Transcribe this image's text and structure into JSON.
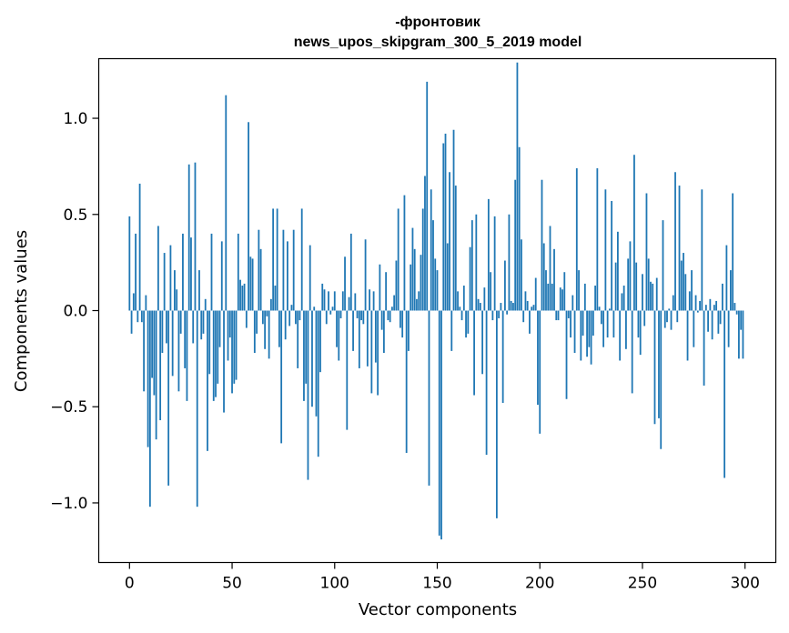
{
  "chart_data": {
    "type": "bar",
    "title_line1": "-фронтовик",
    "title_line2": "news_upos_skipgram_300_5_2019 model",
    "xlabel": "Vector components",
    "ylabel": "Components values",
    "xlim": [
      -15,
      315
    ],
    "ylim": [
      -1.31,
      1.31
    ],
    "xticks": [
      0,
      50,
      100,
      150,
      200,
      250,
      300
    ],
    "yticks": [
      -1.0,
      -0.5,
      0.0,
      0.5,
      1.0
    ],
    "xtick_labels": [
      "0",
      "50",
      "100",
      "150",
      "200",
      "250",
      "300"
    ],
    "ytick_labels": [
      "−1.0",
      "−0.5",
      "0.0",
      "0.5",
      "1.0"
    ],
    "bar_color": "#1f77b4",
    "grid": false,
    "values": [
      0.49,
      -0.12,
      0.09,
      0.4,
      -0.06,
      0.66,
      -0.06,
      -0.42,
      0.08,
      -0.71,
      -1.02,
      -0.35,
      -0.44,
      -0.67,
      0.44,
      -0.57,
      -0.22,
      0.3,
      -0.17,
      -0.91,
      0.34,
      -0.34,
      0.21,
      0.11,
      -0.42,
      -0.12,
      0.4,
      -0.3,
      -0.47,
      0.76,
      0.38,
      -0.17,
      0.77,
      -1.02,
      0.21,
      -0.15,
      -0.12,
      0.06,
      -0.73,
      -0.33,
      0.4,
      -0.47,
      -0.45,
      -0.38,
      -0.19,
      0.36,
      -0.53,
      1.12,
      -0.26,
      -0.14,
      -0.43,
      -0.38,
      -0.36,
      0.4,
      0.16,
      0.13,
      0.14,
      -0.09,
      0.98,
      0.28,
      0.27,
      -0.22,
      -0.12,
      0.42,
      0.32,
      -0.07,
      -0.2,
      -0.03,
      -0.25,
      0.06,
      0.53,
      0.13,
      0.53,
      -0.19,
      -0.69,
      0.42,
      -0.15,
      0.36,
      -0.08,
      0.03,
      0.42,
      -0.07,
      -0.3,
      -0.05,
      0.53,
      -0.47,
      -0.38,
      -0.88,
      0.34,
      -0.5,
      0.02,
      -0.55,
      -0.76,
      -0.32,
      0.14,
      0.11,
      -0.07,
      0.1,
      -0.02,
      0.02,
      0.1,
      -0.19,
      -0.26,
      -0.04,
      0.1,
      0.28,
      -0.62,
      0.07,
      0.4,
      -0.21,
      0.09,
      -0.04,
      -0.3,
      -0.05,
      -0.07,
      0.37,
      -0.29,
      0.11,
      -0.43,
      0.1,
      -0.27,
      -0.44,
      0.24,
      -0.1,
      -0.22,
      0.2,
      -0.05,
      -0.06,
      0.02,
      0.08,
      0.26,
      0.53,
      -0.09,
      -0.14,
      0.6,
      -0.74,
      -0.21,
      0.24,
      0.43,
      0.32,
      0.06,
      0.1,
      0.29,
      0.53,
      0.7,
      1.19,
      -0.91,
      0.63,
      0.47,
      0.27,
      0.21,
      -1.17,
      -1.19,
      0.87,
      0.92,
      0.35,
      0.72,
      -0.21,
      0.94,
      0.65,
      0.1,
      0.02,
      -0.05,
      0.13,
      -0.14,
      -0.12,
      0.33,
      0.47,
      -0.44,
      0.5,
      0.06,
      0.04,
      -0.33,
      0.12,
      -0.75,
      0.58,
      0.2,
      -0.05,
      0.49,
      -1.08,
      -0.04,
      0.04,
      -0.48,
      0.26,
      -0.02,
      0.5,
      0.05,
      0.04,
      0.68,
      1.29,
      0.85,
      0.37,
      -0.06,
      0.1,
      0.05,
      -0.12,
      0.02,
      0.03,
      0.17,
      -0.49,
      -0.64,
      0.68,
      0.35,
      0.21,
      0.14,
      0.44,
      0.14,
      0.32,
      -0.05,
      -0.05,
      0.12,
      0.11,
      0.2,
      -0.46,
      -0.04,
      -0.14,
      0.08,
      -0.22,
      0.74,
      0.21,
      -0.26,
      -0.13,
      0.14,
      -0.24,
      -0.19,
      -0.28,
      -0.13,
      0.13,
      0.74,
      0.02,
      -0.07,
      -0.19,
      0.63,
      -0.14,
      0.01,
      0.57,
      -0.14,
      0.25,
      0.41,
      -0.26,
      0.09,
      0.13,
      -0.2,
      0.27,
      0.36,
      -0.43,
      0.81,
      0.25,
      -0.14,
      -0.23,
      0.19,
      -0.08,
      0.61,
      0.27,
      0.15,
      0.14,
      -0.59,
      0.17,
      -0.56,
      -0.72,
      0.47,
      -0.09,
      -0.06,
      0.01,
      -0.1,
      0.08,
      0.72,
      -0.06,
      0.65,
      0.26,
      0.3,
      0.19,
      -0.26,
      0.1,
      0.21,
      -0.19,
      0.08,
      -0.01,
      0.05,
      0.63,
      -0.39,
      0.03,
      -0.11,
      0.06,
      -0.15,
      0.03,
      0.05,
      -0.12,
      -0.07,
      0.14,
      -0.87,
      0.34,
      -0.19,
      0.21,
      0.61,
      0.04,
      -0.02,
      -0.25,
      -0.1,
      -0.25
    ]
  }
}
